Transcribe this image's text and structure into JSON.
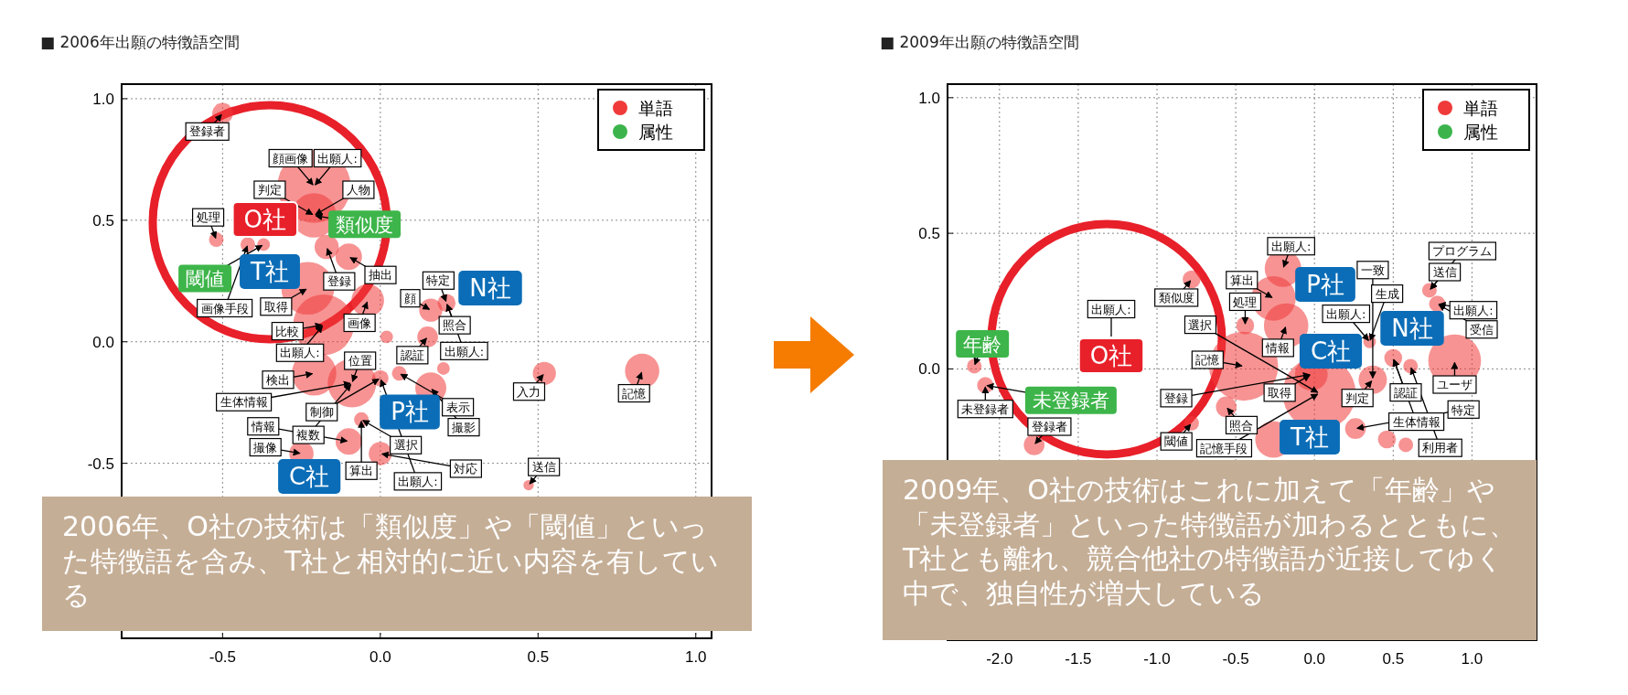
{
  "chart_data": [
    {
      "type": "bubble",
      "title": "■ 2006年出願の特徴語空間",
      "xlim": [
        -0.82,
        1.05
      ],
      "ylim": [
        -1.22,
        1.06
      ],
      "xticks": [
        {
          "value": -0.5,
          "label": "-0.5"
        },
        {
          "value": 0,
          "label": "0.0"
        },
        {
          "value": 0.5,
          "label": "0.5"
        },
        {
          "value": 1,
          "label": "1.0"
        }
      ],
      "yticks": [
        {
          "value": -0.5,
          "label": "-0.5"
        },
        {
          "value": 0,
          "label": "0.0"
        },
        {
          "value": 0.5,
          "label": "0.5"
        },
        {
          "value": 1,
          "label": "1.0"
        }
      ],
      "grid": true,
      "legend": "top right",
      "marker": "circle",
      "series": [
        {
          "name": "単語",
          "color": "#f03a3a",
          "x": [
            -0.5,
            -0.21,
            -0.21,
            -0.52,
            -0.42,
            -0.37,
            -0.17,
            -0.1,
            -0.23,
            -0.18,
            -0.04,
            0.16,
            0.21,
            0.15,
            0.02,
            -0.21,
            -0.09,
            0.0,
            0.06,
            0.16,
            0.2,
            0.52,
            0.83,
            -0.06,
            -0.1,
            0.0,
            -0.25,
            0.47
          ],
          "values": [
            0.94,
            0.64,
            0.52,
            0.42,
            0.4,
            0.4,
            0.39,
            0.35,
            0.22,
            0.07,
            0.17,
            0.13,
            0.16,
            0.02,
            0.02,
            -0.13,
            -0.17,
            -0.15,
            -0.13,
            -0.19,
            -0.11,
            -0.13,
            -0.12,
            -0.32,
            -0.41,
            -0.46,
            -0.46,
            -0.59
          ],
          "sizes": [
            0.08,
            1,
            0.37,
            0.04,
            0.04,
            0.03,
            0.11,
            0.13,
            0.52,
            0.69,
            0.2,
            0.1,
            0.06,
            0.08,
            0.03,
            0.37,
            0.44,
            0.05,
            0.04,
            0.18,
            0.03,
            0.1,
            0.22,
            0.04,
            0.13,
            0.1,
            0.11,
            0.02
          ]
        },
        {
          "name": "属性",
          "color": "#3cb44b"
        }
      ],
      "annotations": [
        "O社",
        "T社",
        "N社",
        "P社",
        "C社",
        {
          "text": "類似度",
          "x": -0.21,
          "y": 0.52
        },
        {
          "text": "閾値",
          "x": -0.37,
          "y": 0.4
        },
        {
          "text": "登録者",
          "x": -0.5,
          "y": 0.94
        },
        {
          "text": "出願人:",
          "x": -0.21,
          "y": 0.64
        },
        {
          "text": "顔画像",
          "x": -0.21,
          "y": 0.64
        },
        {
          "text": "判定",
          "x": -0.21,
          "y": 0.52
        },
        {
          "text": "人物",
          "x": -0.21,
          "y": 0.52
        },
        {
          "text": "登録",
          "x": -0.17,
          "y": 0.39
        },
        {
          "text": "抽出",
          "x": -0.1,
          "y": 0.35
        },
        {
          "text": "取得",
          "x": -0.23,
          "y": 0.22
        },
        {
          "text": "処理",
          "x": -0.52,
          "y": 0.42
        },
        {
          "text": "画像手段",
          "x": -0.42,
          "y": 0.4
        },
        {
          "text": "出願人:",
          "x": -0.18,
          "y": 0.07
        },
        {
          "text": "画像",
          "x": -0.04,
          "y": 0.17
        },
        {
          "text": "顔",
          "x": 0.16,
          "y": 0.13
        },
        {
          "text": "照合",
          "x": 0.21,
          "y": 0.16
        },
        {
          "text": "特定",
          "x": 0.21,
          "y": 0.16
        },
        {
          "text": "出願人:",
          "x": 0.21,
          "y": 0.16
        },
        {
          "text": "比較",
          "x": -0.18,
          "y": 0.07
        },
        {
          "text": "位置",
          "x": -0.09,
          "y": -0.17
        },
        {
          "text": "認証",
          "x": 0.15,
          "y": 0.02
        },
        {
          "text": "表示",
          "x": 0.06,
          "y": -0.13
        },
        {
          "text": "制御",
          "x": 0.0,
          "y": -0.15
        },
        {
          "text": "検出",
          "x": -0.21,
          "y": -0.13
        },
        {
          "text": "撮影",
          "x": 0.16,
          "y": -0.19
        },
        {
          "text": "入力",
          "x": 0.52,
          "y": -0.13
        },
        {
          "text": "記憶",
          "x": 0.83,
          "y": -0.12
        },
        {
          "text": "複数",
          "x": -0.09,
          "y": -0.17
        },
        {
          "text": "生体情報",
          "x": -0.09,
          "y": -0.17
        },
        {
          "text": "出願人:",
          "x": 0.0,
          "y": -0.15
        },
        {
          "text": "算出",
          "x": -0.06,
          "y": -0.32
        },
        {
          "text": "選択",
          "x": -0.06,
          "y": -0.32
        },
        {
          "text": "送信",
          "x": 0.47,
          "y": -0.59
        },
        {
          "text": "対応",
          "x": 0.0,
          "y": -0.46
        },
        {
          "text": "情報",
          "x": -0.1,
          "y": -0.41
        },
        {
          "text": "撮像",
          "x": -0.25,
          "y": -0.46
        },
        "2006年、O社の技術は「類似度」や「閾値」といった特徴語を含み、T社と相対的に近い内容を有している"
      ]
    },
    {
      "type": "bubble",
      "title": "■ 2009年出願の特徴語空間",
      "xlim": [
        -2.33,
        1.41
      ],
      "ylim": [
        -1.0,
        1.05
      ],
      "xticks": [
        {
          "value": -2,
          "label": "-2.0"
        },
        {
          "value": -1.5,
          "label": "-1.5"
        },
        {
          "value": -1,
          "label": "-1.0"
        },
        {
          "value": -0.5,
          "label": "-0.5"
        },
        {
          "value": 0,
          "label": "0.0"
        },
        {
          "value": 0.5,
          "label": "0.5"
        },
        {
          "value": 1,
          "label": "1.0"
        }
      ],
      "yticks": [
        {
          "value": 0,
          "label": "0.0"
        },
        {
          "value": 0.5,
          "label": "0.5"
        },
        {
          "value": 1,
          "label": "1.0"
        }
      ],
      "grid": true,
      "legend": "top right",
      "marker": "circle",
      "series": [
        {
          "name": "単語",
          "color": "#f03a3a",
          "x": [
            -2.16,
            -2.09,
            -1.78,
            -0.78,
            -0.2,
            -0.26,
            -0.18,
            -0.44,
            -0.45,
            -0.56,
            -0.78,
            0.03,
            -0.02,
            0.37,
            0.5,
            0.61,
            0.89,
            0.73,
            0.78,
            0.26,
            0.46,
            0.58,
            -0.26,
            0.35
          ],
          "values": [
            0.01,
            -0.06,
            -0.28,
            0.33,
            0.37,
            0.26,
            0.16,
            0.16,
            0.01,
            -0.14,
            -0.2,
            -0.09,
            -0.02,
            -0.04,
            0.04,
            0.01,
            0.03,
            0.29,
            0.24,
            -0.22,
            -0.26,
            -0.28,
            -0.26,
            0.1
          ],
          "sizes": [
            0.04,
            0.05,
            0.08,
            0.06,
            0.25,
            0.37,
            0.37,
            0.06,
            0.89,
            0.08,
            0.04,
            1,
            0.2,
            0.15,
            0.06,
            0.04,
            0.52,
            0.04,
            0.05,
            0.08,
            0.06,
            0.04,
            0.25,
            0.03
          ]
        },
        {
          "name": "属性",
          "color": "#3cb44b"
        }
      ],
      "annotations": [
        "O社",
        "P社",
        "N社",
        "C社",
        "T社",
        {
          "text": "年齢",
          "x": -2.16,
          "y": 0.01
        },
        {
          "text": "未登録者",
          "x": -2.09,
          "y": -0.06
        },
        {
          "text": "未登録者",
          "x": -2.09,
          "y": -0.06
        },
        {
          "text": "登録者",
          "x": -1.78,
          "y": -0.28
        },
        "出願人:",
        {
          "text": "類似度",
          "x": -0.78,
          "y": 0.33
        },
        {
          "text": "情報",
          "x": -0.18,
          "y": 0.16
        },
        {
          "text": "出願人:",
          "x": -0.2,
          "y": 0.37
        },
        {
          "text": "算出",
          "x": -0.26,
          "y": 0.26
        },
        {
          "text": "処理",
          "x": -0.44,
          "y": 0.16
        },
        {
          "text": "記憶",
          "x": -0.45,
          "y": 0.01
        },
        {
          "text": "取得",
          "x": -0.02,
          "y": -0.02
        },
        {
          "text": "出願人:",
          "x": 0.35,
          "y": 0.1
        },
        {
          "text": "生成",
          "x": 0.35,
          "y": 0.1
        },
        {
          "text": "出願人:",
          "x": 0.78,
          "y": 0.24
        },
        {
          "text": "送信",
          "x": 0.73,
          "y": 0.29
        },
        {
          "text": "プログラム",
          "x": 0.73,
          "y": 0.29
        },
        {
          "text": "受信",
          "x": 0.78,
          "y": 0.24
        },
        {
          "text": "認証",
          "x": 0.5,
          "y": 0.04
        },
        {
          "text": "生体情報",
          "x": 0.5,
          "y": 0.04
        },
        {
          "text": "判定",
          "x": 0.37,
          "y": -0.04
        },
        {
          "text": "ユーザ",
          "x": 0.89,
          "y": 0.03
        },
        {
          "text": "利用者",
          "x": 0.61,
          "y": 0.01
        },
        {
          "text": "一致",
          "x": 0.37,
          "y": -0.04
        },
        {
          "text": "記憶手段",
          "x": 0.03,
          "y": -0.09
        },
        {
          "text": "照合",
          "x": -0.56,
          "y": -0.14
        },
        {
          "text": "登録",
          "x": -0.02,
          "y": -0.02
        },
        {
          "text": "閾値",
          "x": -0.78,
          "y": -0.2
        },
        {
          "text": "選択",
          "x": 0.03,
          "y": -0.09
        },
        {
          "text": "特定",
          "x": 0.26,
          "y": -0.22
        },
        "2009年、O社の技術はこれに加えて「年齢」や「未登録者」といった特徴語が加わるとともに、T社とも離れ、競合他社の特徴語が近接してゆく中で、独自性が増大している"
      ]
    }
  ]
}
